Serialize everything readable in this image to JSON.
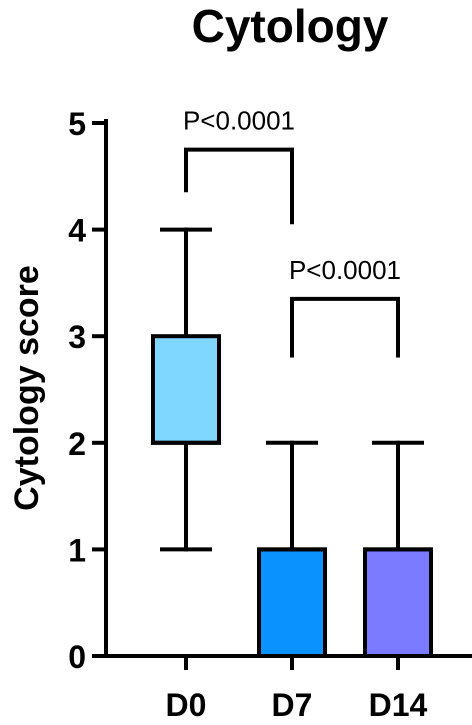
{
  "chart_data": {
    "type": "box",
    "title": "Cytology",
    "xlabel": "",
    "ylabel": "Cytology score",
    "ylim": [
      0,
      5
    ],
    "yticks": [
      0,
      1,
      2,
      3,
      4,
      5
    ],
    "categories": [
      "D0",
      "D7",
      "D14"
    ],
    "boxes": [
      {
        "category": "D0",
        "min": 1,
        "q1": 2,
        "median": 2,
        "q3": 3,
        "max": 4,
        "color": "#7fd7ff"
      },
      {
        "category": "D7",
        "min": 0,
        "q1": 0,
        "median": 1,
        "q3": 1,
        "max": 2,
        "color": "#0a92ff"
      },
      {
        "category": "D14",
        "min": 0,
        "q1": 0,
        "median": 1,
        "q3": 1,
        "max": 2,
        "color": "#7b7bff"
      }
    ],
    "comparisons": [
      {
        "from": "D0",
        "to": "D7",
        "label": "P<0.0001",
        "bracket_y": 4.75,
        "left_end_y": 4.35,
        "right_end_y": 4.05
      },
      {
        "from": "D7",
        "to": "D14",
        "label": "P<0.0001",
        "bracket_y": 3.35,
        "left_end_y": 2.8,
        "right_end_y": 2.8
      }
    ],
    "grid": false,
    "legend": "none"
  }
}
